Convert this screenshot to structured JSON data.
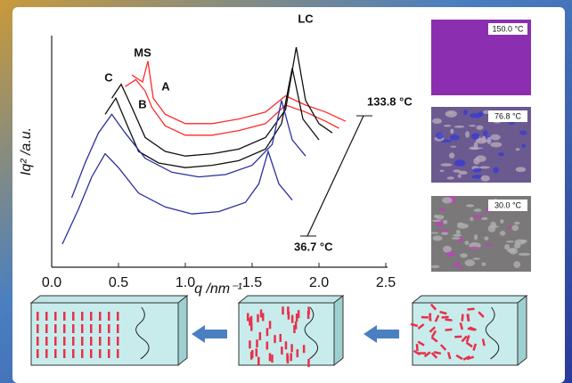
{
  "chart_data": {
    "type": "line",
    "x_label": "q /nm⁻¹",
    "y_label": "Iq² /a.u.",
    "xlim": [
      0,
      2.5
    ],
    "ylim": [
      0,
      10
    ],
    "xticks": [
      {
        "value": 0,
        "label": "0.0"
      },
      0.5,
      {
        "value": 1,
        "label": "1.0"
      },
      1.5,
      {
        "value": 2,
        "label": "2.0"
      },
      2.5
    ],
    "annotations": [
      "MS",
      "LC",
      "A",
      "B",
      "C",
      "133.8 °C",
      "36.7 °C"
    ],
    "series": [
      {
        "color": "#ff2a2a",
        "x": [
          0.6,
          0.68,
          0.72,
          0.76,
          0.85,
          1.0,
          1.2,
          1.4,
          1.6,
          1.75,
          1.9,
          2.05,
          2.2
        ],
        "values": [
          8.3,
          8.0,
          8.9,
          7.3,
          6.6,
          6.2,
          6.2,
          6.4,
          6.7,
          7.4,
          7.0,
          6.7,
          6.3
        ]
      },
      {
        "color": "#ff2a2a",
        "x": [
          0.55,
          0.63,
          0.7,
          0.75,
          0.85,
          1.0,
          1.2,
          1.4,
          1.6,
          1.75,
          1.9,
          2.05,
          2.15
        ],
        "values": [
          7.8,
          8.1,
          7.6,
          6.9,
          6.1,
          5.7,
          5.7,
          5.9,
          6.2,
          7.0,
          6.7,
          6.3,
          6.0
        ]
      },
      {
        "color": "#111111",
        "x": [
          0.45,
          0.52,
          0.6,
          0.7,
          0.85,
          1.0,
          1.2,
          1.4,
          1.6,
          1.75,
          1.83,
          1.9,
          2.0,
          2.1
        ],
        "values": [
          7.3,
          7.9,
          6.9,
          5.6,
          5.0,
          4.8,
          4.9,
          5.1,
          5.6,
          6.8,
          9.5,
          7.2,
          6.2,
          5.8
        ]
      },
      {
        "color": "#111111",
        "x": [
          0.4,
          0.48,
          0.56,
          0.65,
          0.8,
          1.0,
          1.2,
          1.4,
          1.6,
          1.72,
          1.8,
          1.88,
          2.0
        ],
        "values": [
          6.6,
          7.3,
          6.2,
          5.0,
          4.5,
          4.3,
          4.4,
          4.6,
          5.1,
          6.2,
          8.6,
          6.4,
          5.5
        ]
      },
      {
        "color": "#2b2f9e",
        "x": [
          0.15,
          0.25,
          0.35,
          0.45,
          0.55,
          0.7,
          0.9,
          1.1,
          1.3,
          1.5,
          1.65,
          1.72,
          1.8,
          1.9
        ],
        "values": [
          3.0,
          4.5,
          5.8,
          6.6,
          5.8,
          4.7,
          4.1,
          3.9,
          4.0,
          4.4,
          5.3,
          7.2,
          5.5,
          4.8
        ]
      },
      {
        "color": "#2b2f9e",
        "x": [
          0.08,
          0.2,
          0.3,
          0.4,
          0.5,
          0.65,
          0.85,
          1.05,
          1.25,
          1.45,
          1.55,
          1.62,
          1.7,
          1.8
        ],
        "values": [
          1.0,
          2.5,
          3.9,
          4.9,
          4.3,
          3.2,
          2.6,
          2.3,
          2.4,
          2.8,
          3.6,
          5.0,
          3.6,
          2.9
        ]
      }
    ]
  },
  "micrographs": [
    "150.0 °C",
    "76.8 °C",
    "30.0 °C"
  ]
}
